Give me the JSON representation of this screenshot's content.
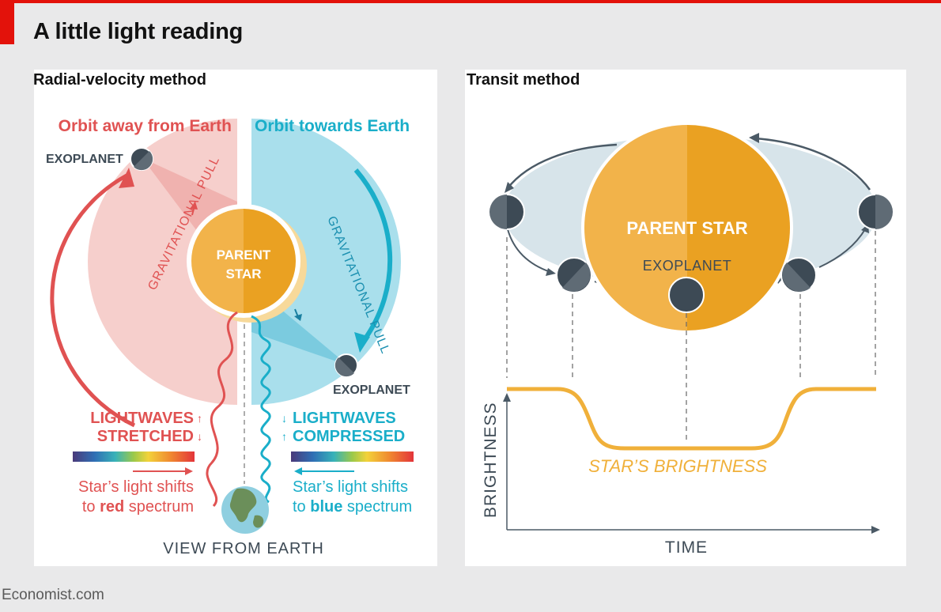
{
  "header": {
    "title": "A little light reading"
  },
  "left": {
    "title": "Radial-velocity method",
    "away_label": "Orbit away from Earth",
    "towards_label": "Orbit towards Earth",
    "exoplanet_top": "EXOPLANET",
    "exoplanet_bottom": "EXOPLANET",
    "star_line1": "PARENT",
    "star_line2": "STAR",
    "grav_left": "GRAVITATIONAL PULL",
    "grav_right": "GRAVITATIONAL PULL",
    "lw_stretched_1": "LIGHTWAVES",
    "lw_stretched_2": "STRETCHED",
    "lw_compressed_1": "LIGHTWAVES",
    "lw_compressed_2": "COMPRESSED",
    "red_shift_1": "Star’s light shifts",
    "red_shift_2a": "to ",
    "red_shift_2b": "red",
    "red_shift_2c": " spectrum",
    "blue_shift_1": "Star’s light shifts",
    "blue_shift_2a": "to ",
    "blue_shift_2b": "blue",
    "blue_shift_2c": " spectrum",
    "view": "VIEW FROM EARTH"
  },
  "right": {
    "title": "Transit method",
    "star": "PARENT STAR",
    "exoplanet": "EXOPLANET",
    "curve_label": "STAR’S BRIGHTNESS",
    "y_axis": "BRIGHTNESS",
    "x_axis": "TIME"
  },
  "footer": {
    "source": "Economist.com"
  },
  "colors": {
    "red": "#e05252",
    "blue": "#1aaec9",
    "star": "#f0a92a",
    "planet": "#3d4a55",
    "curve": "#f0b03a"
  }
}
